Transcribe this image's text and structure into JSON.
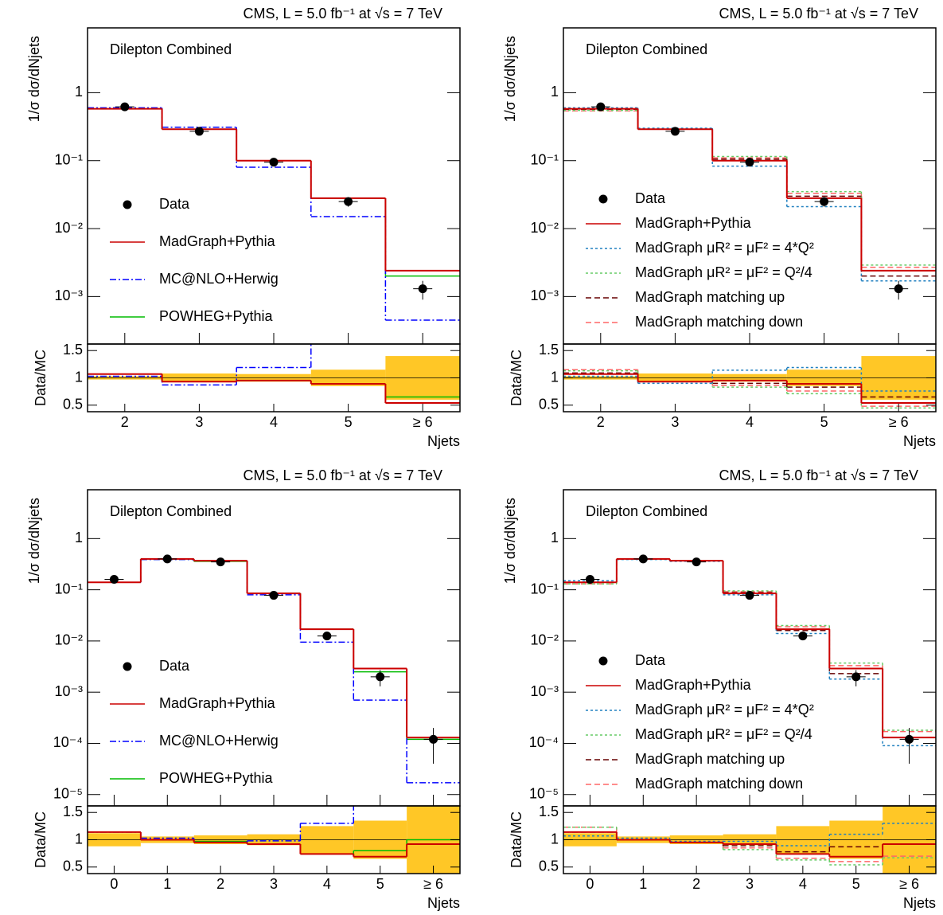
{
  "chart_data": [
    {
      "type": "step",
      "title": "CMS, L = 5.0 fb⁻¹ at √s = 7 TeV",
      "y_label": "1/σ dσ/dNjets",
      "x_label": "Njets",
      "annotation": "Dilepton Combined",
      "categories": [
        "2",
        "3",
        "4",
        "5",
        "≥ 6"
      ],
      "log_y": true,
      "ylim": [
        0.0002,
        9
      ],
      "yticks": [
        {
          "value": 0.001,
          "label": "10⁻³"
        },
        {
          "value": 0.01,
          "label": "10⁻²"
        },
        {
          "value": 0.1,
          "label": "10⁻¹"
        },
        1
      ],
      "data": {
        "name": "Data",
        "color": "#000000",
        "values": [
          0.62,
          0.27,
          0.095,
          0.025,
          0.0013
        ],
        "errors": [
          0.03,
          0.02,
          0.008,
          0.004,
          0.0004
        ]
      },
      "series": [
        {
          "name": "MadGraph+Pythia",
          "color": "#cc0000",
          "dash": "solid",
          "values": [
            0.58,
            0.29,
            0.1,
            0.028,
            0.0024
          ]
        },
        {
          "name": "MC@NLO+Herwig",
          "color": "#0000ff",
          "dash": "dashdot",
          "values": [
            0.6,
            0.31,
            0.08,
            0.015,
            0.00045
          ]
        },
        {
          "name": "POWHEG+Pythia",
          "color": "#00bb00",
          "dash": "solid",
          "values": [
            0.58,
            0.29,
            0.1,
            0.028,
            0.002
          ]
        }
      ],
      "ratio_label": "Data/MC",
      "ratio_ylim": [
        0.38,
        1.62
      ],
      "ratio_yticks": [
        0.5,
        1,
        1.5
      ],
      "ratio_band_color": "#ffc726",
      "ratio_uncertainty": [
        0.03,
        0.08,
        0.07,
        0.15,
        0.4
      ],
      "ratio_series": [
        [
          1.07,
          0.93,
          0.95,
          0.89,
          0.54
        ],
        [
          1.03,
          0.87,
          1.19,
          1.67,
          2.9
        ],
        [
          1.07,
          0.93,
          0.95,
          0.89,
          0.65
        ]
      ]
    },
    {
      "type": "step",
      "title": "CMS, L = 5.0 fb⁻¹ at √s = 7 TeV",
      "y_label": "1/σ dσ/dNjets",
      "x_label": "Njets",
      "annotation": "Dilepton Combined",
      "categories": [
        "2",
        "3",
        "4",
        "5",
        "≥ 6"
      ],
      "log_y": true,
      "ylim": [
        0.0002,
        9
      ],
      "yticks": [
        {
          "value": 0.001,
          "label": "10⁻³"
        },
        {
          "value": 0.01,
          "label": "10⁻²"
        },
        {
          "value": 0.1,
          "label": "10⁻¹"
        },
        1
      ],
      "data": {
        "name": "Data",
        "color": "#000000",
        "values": [
          0.62,
          0.27,
          0.095,
          0.025,
          0.0013
        ],
        "errors": [
          0.03,
          0.02,
          0.008,
          0.004,
          0.0004
        ]
      },
      "series": [
        {
          "name": "MadGraph+Pythia",
          "color": "#cc0000",
          "dash": "solid",
          "values": [
            0.58,
            0.29,
            0.1,
            0.028,
            0.0024
          ]
        },
        {
          "name": "MadGraph μR² = μF² = 4*Q²",
          "color": "#2080c0",
          "dash": "dotted",
          "values": [
            0.6,
            0.3,
            0.083,
            0.021,
            0.0017
          ]
        },
        {
          "name": "MadGraph μR² = μF² = Q²/4",
          "color": "#66cc66",
          "dash": "dotted",
          "values": [
            0.55,
            0.29,
            0.115,
            0.035,
            0.0029
          ]
        },
        {
          "name": "MadGraph matching up",
          "color": "#660000",
          "dash": "dashed",
          "values": [
            0.57,
            0.29,
            0.105,
            0.03,
            0.002
          ]
        },
        {
          "name": "MadGraph matching down",
          "color": "#ff6666",
          "dash": "dashed",
          "values": [
            0.54,
            0.29,
            0.11,
            0.033,
            0.0027
          ]
        }
      ],
      "ratio_label": "Data/MC",
      "ratio_ylim": [
        0.38,
        1.62
      ],
      "ratio_yticks": [
        0.5,
        1,
        1.5
      ],
      "ratio_band_color": "#ffc726",
      "ratio_uncertainty": [
        0.03,
        0.08,
        0.07,
        0.15,
        0.4
      ],
      "ratio_series": [
        [
          1.07,
          0.93,
          0.95,
          0.89,
          0.54
        ],
        [
          1.03,
          0.9,
          1.14,
          1.19,
          0.76
        ],
        [
          1.13,
          0.93,
          0.83,
          0.71,
          0.45
        ],
        [
          1.09,
          0.93,
          0.9,
          0.83,
          0.65
        ],
        [
          1.15,
          0.93,
          0.86,
          0.76,
          0.48
        ]
      ]
    },
    {
      "type": "step",
      "title": "CMS, L = 5.0 fb⁻¹ at √s = 7 TeV",
      "y_label": "1/σ dσ/dNjets",
      "x_label": "Njets",
      "annotation": "Dilepton Combined",
      "categories": [
        "0",
        "1",
        "2",
        "3",
        "4",
        "5",
        "≥ 6"
      ],
      "log_y": true,
      "ylim": [
        6e-06,
        9
      ],
      "yticks": [
        {
          "value": 1e-05,
          "label": "10⁻⁵"
        },
        {
          "value": 0.0001,
          "label": "10⁻⁴"
        },
        {
          "value": 0.001,
          "label": "10⁻³"
        },
        {
          "value": 0.01,
          "label": "10⁻²"
        },
        {
          "value": 0.1,
          "label": "10⁻¹"
        },
        1
      ],
      "data": {
        "name": "Data",
        "color": "#000000",
        "values": [
          0.16,
          0.4,
          0.35,
          0.078,
          0.0125,
          0.002,
          0.00012
        ],
        "errors": [
          0.02,
          0.02,
          0.03,
          0.006,
          0.002,
          0.0007,
          8e-05
        ]
      },
      "series": [
        {
          "name": "MadGraph+Pythia",
          "color": "#cc0000",
          "dash": "solid",
          "values": [
            0.14,
            0.4,
            0.37,
            0.085,
            0.017,
            0.0029,
            0.00013
          ]
        },
        {
          "name": "MC@NLO+Herwig",
          "color": "#0000ff",
          "dash": "dashdot",
          "values": [
            0.14,
            0.39,
            0.37,
            0.08,
            0.0095,
            0.0007,
            1.7e-05
          ]
        },
        {
          "name": "POWHEG+Pythia",
          "color": "#00bb00",
          "dash": "solid",
          "values": [
            0.14,
            0.4,
            0.36,
            0.085,
            0.017,
            0.0025,
            0.00012
          ]
        }
      ],
      "ratio_label": "Data/MC",
      "ratio_ylim": [
        0.38,
        1.62
      ],
      "ratio_yticks": [
        0.5,
        1,
        1.5
      ],
      "ratio_band_color": "#ffc726",
      "ratio_uncertainty": [
        0.12,
        0.06,
        0.08,
        0.1,
        0.25,
        0.35,
        0.7
      ],
      "ratio_series": [
        [
          1.14,
          1.0,
          0.95,
          0.92,
          0.74,
          0.69,
          0.92
        ],
        [
          1.14,
          1.03,
          0.95,
          0.98,
          1.3,
          2.9,
          7
        ],
        [
          1.14,
          1.0,
          0.97,
          0.92,
          0.74,
          0.8,
          1.0
        ]
      ]
    },
    {
      "type": "step",
      "title": "CMS, L = 5.0 fb⁻¹ at √s = 7 TeV",
      "y_label": "1/σ dσ/dNjets",
      "x_label": "Njets",
      "annotation": "Dilepton Combined",
      "categories": [
        "0",
        "1",
        "2",
        "3",
        "4",
        "5",
        "≥ 6"
      ],
      "log_y": true,
      "ylim": [
        6e-06,
        9
      ],
      "yticks": [
        {
          "value": 1e-05,
          "label": "10⁻⁵"
        },
        {
          "value": 0.0001,
          "label": "10⁻⁴"
        },
        {
          "value": 0.001,
          "label": "10⁻³"
        },
        {
          "value": 0.01,
          "label": "10⁻²"
        },
        {
          "value": 0.1,
          "label": "10⁻¹"
        },
        1
      ],
      "data": {
        "name": "Data",
        "color": "#000000",
        "values": [
          0.16,
          0.4,
          0.35,
          0.078,
          0.0125,
          0.002,
          0.00012
        ],
        "errors": [
          0.02,
          0.02,
          0.03,
          0.006,
          0.002,
          0.0007,
          8e-05
        ]
      },
      "series": [
        {
          "name": "MadGraph+Pythia",
          "color": "#cc0000",
          "dash": "solid",
          "values": [
            0.14,
            0.4,
            0.37,
            0.085,
            0.017,
            0.0029,
            0.00013
          ]
        },
        {
          "name": "MadGraph μR² = μF² = 4*Q²",
          "color": "#2080c0",
          "dash": "dotted",
          "values": [
            0.15,
            0.39,
            0.36,
            0.08,
            0.014,
            0.0018,
            9e-05
          ]
        },
        {
          "name": "MadGraph μR² = μF² = Q²/4",
          "color": "#66cc66",
          "dash": "dotted",
          "values": [
            0.13,
            0.4,
            0.37,
            0.095,
            0.02,
            0.0037,
            0.00018
          ]
        },
        {
          "name": "MadGraph matching up",
          "color": "#660000",
          "dash": "dashed",
          "values": [
            0.14,
            0.4,
            0.37,
            0.088,
            0.016,
            0.0023,
            0.00013
          ]
        },
        {
          "name": "MadGraph matching down",
          "color": "#ff6666",
          "dash": "dashed",
          "values": [
            0.13,
            0.4,
            0.37,
            0.092,
            0.019,
            0.0033,
            0.00017
          ]
        }
      ],
      "ratio_label": "Data/MC",
      "ratio_ylim": [
        0.38,
        1.62
      ],
      "ratio_yticks": [
        0.5,
        1,
        1.5
      ],
      "ratio_band_color": "#ffc726",
      "ratio_uncertainty": [
        0.12,
        0.06,
        0.08,
        0.1,
        0.25,
        0.35,
        0.7
      ],
      "ratio_series": [
        [
          1.14,
          1.0,
          0.95,
          0.92,
          0.74,
          0.69,
          0.92
        ],
        [
          1.07,
          1.03,
          0.97,
          0.97,
          0.89,
          1.1,
          1.3
        ],
        [
          1.23,
          1.0,
          0.95,
          0.82,
          0.63,
          0.54,
          0.67
        ],
        [
          1.14,
          1.0,
          0.95,
          0.89,
          0.78,
          0.87,
          0.92
        ],
        [
          1.23,
          1.0,
          0.95,
          0.85,
          0.66,
          0.6,
          0.7
        ]
      ]
    }
  ]
}
